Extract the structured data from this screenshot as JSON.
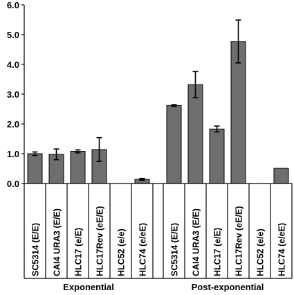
{
  "chart_data": {
    "type": "bar",
    "title": "",
    "xlabel": "",
    "ylabel": "",
    "ylim": [
      0,
      6
    ],
    "yticks": [
      "0.0",
      "1.0",
      "2.0",
      "3.0",
      "4.0",
      "5.0",
      "6.0"
    ],
    "bar_color": "#6e6e6e",
    "grid": false,
    "groups": [
      {
        "name": "Exponential",
        "categories": [
          "SC5314 (E/E)",
          "CAI4 URA3 (E/E)",
          "HLC17 (e/E)",
          "HLC17Rev (eE/E)",
          "HLC52 (e/e)",
          "HLC74 (e/eE)"
        ],
        "values": [
          1.0,
          0.98,
          1.08,
          1.14,
          0.0,
          0.14
        ],
        "errors": [
          0.06,
          0.18,
          0.05,
          0.4,
          0.0,
          0.03
        ]
      },
      {
        "name": "Post-exponential",
        "categories": [
          "SC5314 (E/E)",
          "CAI4 URA3 (E/E)",
          "HLC17 (e/E)",
          "HLC17Rev (eE/E)",
          "HLC52 (e/e)",
          "HLC74 (e/eE)"
        ],
        "values": [
          2.62,
          3.32,
          1.83,
          4.77,
          0.0,
          0.51
        ],
        "errors": [
          0.03,
          0.44,
          0.1,
          0.72,
          0.0,
          0.0
        ]
      }
    ]
  }
}
